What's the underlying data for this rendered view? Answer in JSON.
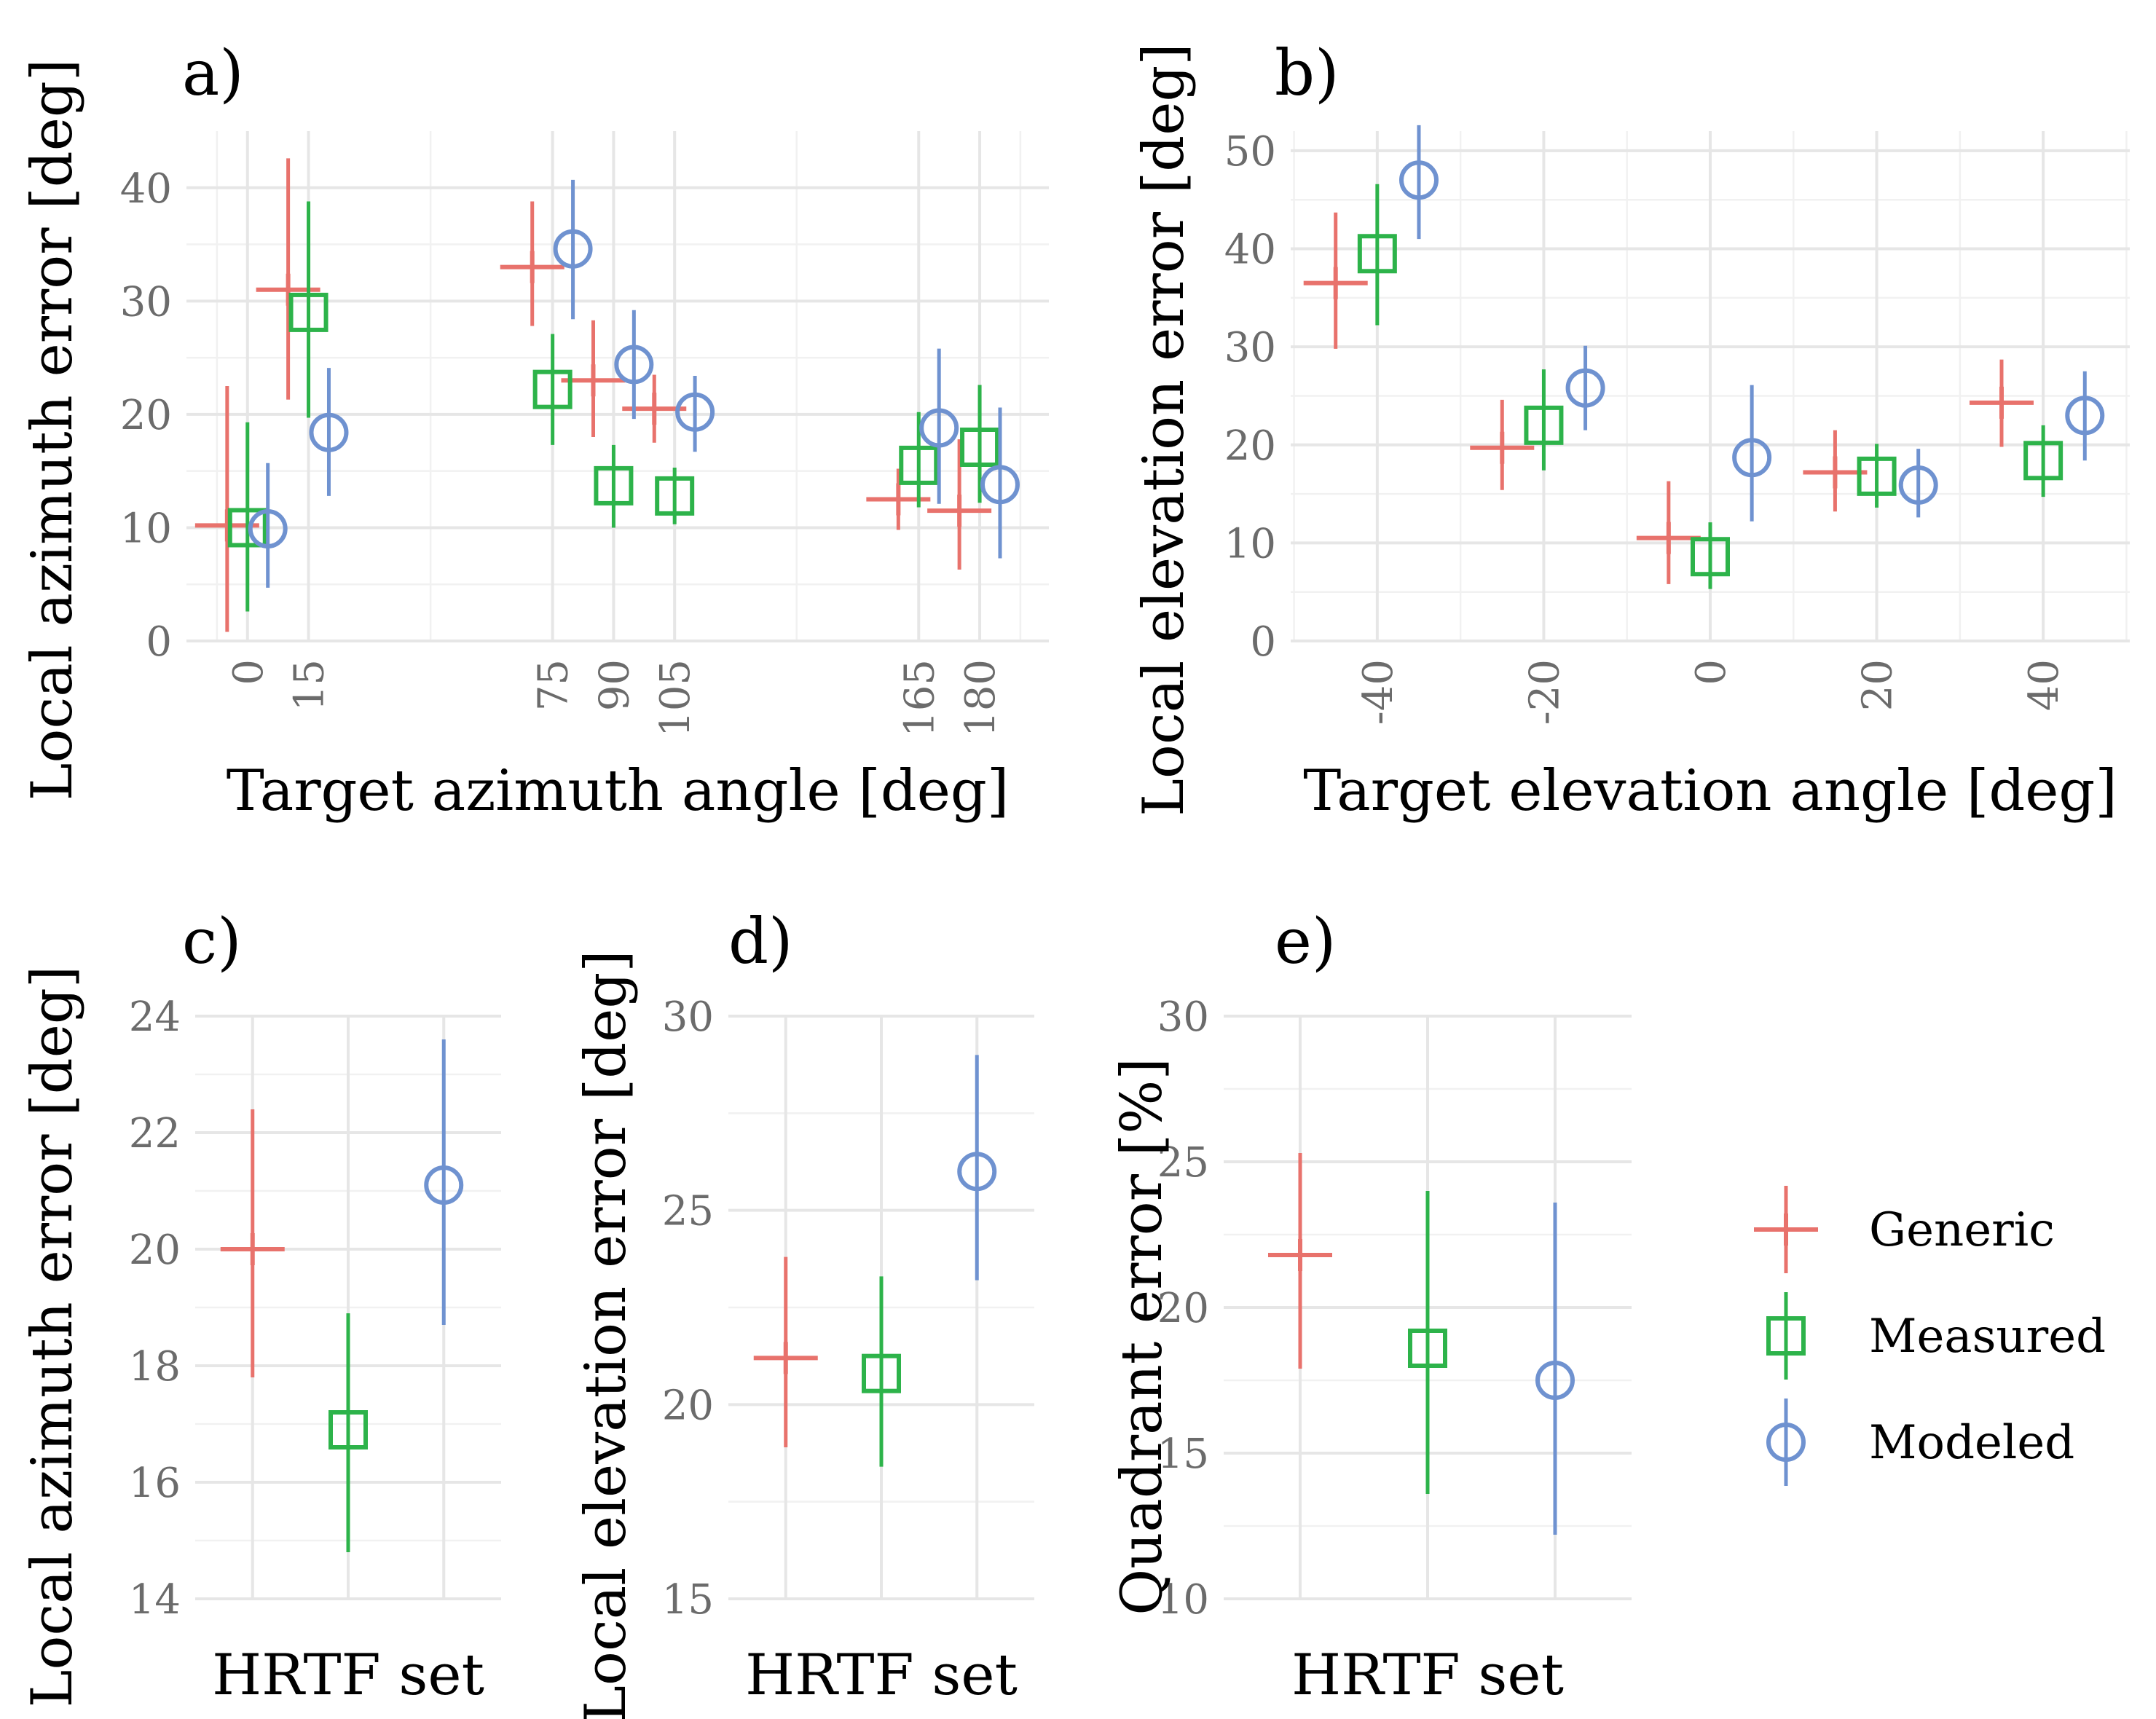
{
  "colors": {
    "Generic": "#e8726c",
    "Measured": "#2db34a",
    "Modeled": "#6f92d0",
    "grid": "#e6e6e6",
    "tick": "#6b6b6b"
  },
  "legend": {
    "items": [
      {
        "name": "Generic",
        "label": "Generic",
        "shape": "cross"
      },
      {
        "name": "Measured",
        "label": "Measured",
        "shape": "square"
      },
      {
        "name": "Modeled",
        "label": "Modeled",
        "shape": "circle"
      }
    ]
  },
  "chart_data": [
    {
      "id": "a",
      "panel_label": "a)",
      "type": "scatter",
      "xlabel": "Target azimuth angle [deg]",
      "ylabel": "Local azimuth error [deg]",
      "x_ticks": [
        0,
        15,
        75,
        90,
        105,
        165,
        180
      ],
      "x_tick_labels": [
        "0",
        "15",
        "75",
        "90",
        "105",
        "165",
        "180"
      ],
      "x_tick_rotation": -90,
      "y_ticks": [
        0,
        10,
        20,
        30,
        40
      ],
      "y_tick_labels": [
        "0",
        "10",
        "20",
        "30",
        "40"
      ],
      "xlim": [
        -15,
        197
      ],
      "ylim": [
        0,
        45
      ],
      "series": [
        {
          "name": "Generic",
          "points": [
            {
              "x": -5,
              "y": 10.2,
              "lo": 0.8,
              "hi": 22.5
            },
            {
              "x": 10,
              "y": 31.0,
              "lo": 21.3,
              "hi": 42.6
            },
            {
              "x": 70,
              "y": 33.0,
              "lo": 27.8,
              "hi": 38.8
            },
            {
              "x": 85,
              "y": 23.0,
              "lo": 18.0,
              "hi": 28.3
            },
            {
              "x": 100,
              "y": 20.5,
              "lo": 17.5,
              "hi": 23.5
            },
            {
              "x": 160,
              "y": 12.5,
              "lo": 9.8,
              "hi": 15.2
            },
            {
              "x": 175,
              "y": 11.5,
              "lo": 6.3,
              "hi": 17.8
            }
          ]
        },
        {
          "name": "Measured",
          "points": [
            {
              "x": 0,
              "y": 10.0,
              "lo": 2.6,
              "hi": 19.3
            },
            {
              "x": 15,
              "y": 29.0,
              "lo": 19.7,
              "hi": 38.8
            },
            {
              "x": 75,
              "y": 22.2,
              "lo": 17.3,
              "hi": 27.1
            },
            {
              "x": 90,
              "y": 13.7,
              "lo": 10.0,
              "hi": 17.3
            },
            {
              "x": 105,
              "y": 12.8,
              "lo": 10.3,
              "hi": 15.3
            },
            {
              "x": 165,
              "y": 15.5,
              "lo": 11.8,
              "hi": 20.2
            },
            {
              "x": 180,
              "y": 17.1,
              "lo": 12.2,
              "hi": 22.6
            }
          ]
        },
        {
          "name": "Modeled",
          "points": [
            {
              "x": 5,
              "y": 9.9,
              "lo": 4.7,
              "hi": 15.7
            },
            {
              "x": 20,
              "y": 18.4,
              "lo": 12.8,
              "hi": 24.1
            },
            {
              "x": 80,
              "y": 34.6,
              "lo": 28.4,
              "hi": 40.7
            },
            {
              "x": 95,
              "y": 24.4,
              "lo": 19.6,
              "hi": 29.2
            },
            {
              "x": 110,
              "y": 20.2,
              "lo": 16.7,
              "hi": 23.4
            },
            {
              "x": 170,
              "y": 18.8,
              "lo": 12.1,
              "hi": 25.8
            },
            {
              "x": 185,
              "y": 13.8,
              "lo": 7.3,
              "hi": 20.6
            }
          ]
        }
      ]
    },
    {
      "id": "b",
      "panel_label": "b)",
      "type": "scatter",
      "xlabel": "Target elevation angle [deg]",
      "ylabel": "Local elevation error [deg]",
      "x_ticks": [
        -40,
        -20,
        0,
        20,
        40
      ],
      "x_tick_labels": [
        "-40",
        "-20",
        "0",
        "20",
        "40"
      ],
      "x_tick_rotation": -90,
      "y_ticks": [
        0,
        10,
        20,
        30,
        40,
        50
      ],
      "y_tick_labels": [
        "0",
        "10",
        "20",
        "30",
        "40",
        "50"
      ],
      "xlim": [
        -50.4,
        50.4
      ],
      "ylim": [
        0,
        52
      ],
      "series": [
        {
          "name": "Generic",
          "points": [
            {
              "x": -45,
              "y": 36.5,
              "lo": 29.8,
              "hi": 43.7
            },
            {
              "x": -25,
              "y": 19.7,
              "lo": 15.4,
              "hi": 24.6
            },
            {
              "x": -5,
              "y": 10.5,
              "lo": 5.8,
              "hi": 16.3
            },
            {
              "x": 15,
              "y": 17.2,
              "lo": 13.2,
              "hi": 21.5
            },
            {
              "x": 35,
              "y": 24.3,
              "lo": 19.8,
              "hi": 28.7
            }
          ]
        },
        {
          "name": "Measured",
          "points": [
            {
              "x": -40,
              "y": 39.5,
              "lo": 32.2,
              "hi": 46.6
            },
            {
              "x": -20,
              "y": 22.0,
              "lo": 17.4,
              "hi": 27.7
            },
            {
              "x": 0,
              "y": 8.6,
              "lo": 5.3,
              "hi": 12.1
            },
            {
              "x": 20,
              "y": 16.8,
              "lo": 13.6,
              "hi": 20.1
            },
            {
              "x": 40,
              "y": 18.4,
              "lo": 14.7,
              "hi": 22.0
            }
          ]
        },
        {
          "name": "Modeled",
          "points": [
            {
              "x": -35,
              "y": 47.0,
              "lo": 41.0,
              "hi": 52.6
            },
            {
              "x": -15,
              "y": 25.8,
              "lo": 21.5,
              "hi": 30.1
            },
            {
              "x": 5,
              "y": 18.7,
              "lo": 12.2,
              "hi": 26.1
            },
            {
              "x": 25,
              "y": 15.9,
              "lo": 12.6,
              "hi": 19.6
            },
            {
              "x": 45,
              "y": 23.0,
              "lo": 18.4,
              "hi": 27.5
            }
          ]
        }
      ]
    },
    {
      "id": "c",
      "panel_label": "c)",
      "type": "scatter",
      "xlabel": "HRTF set",
      "ylabel": "Local azimuth error [deg]",
      "x_ticks": [
        1,
        2,
        3
      ],
      "x_tick_labels": [],
      "y_ticks": [
        14,
        16,
        18,
        20,
        22,
        24
      ],
      "y_tick_labels": [
        "14",
        "16",
        "18",
        "20",
        "22",
        "24"
      ],
      "xlim": [
        0.4,
        3.6
      ],
      "ylim": [
        14,
        24
      ],
      "series": [
        {
          "name": "Generic",
          "points": [
            {
              "x": 1,
              "y": 20.0,
              "lo": 17.8,
              "hi": 22.4
            }
          ]
        },
        {
          "name": "Measured",
          "points": [
            {
              "x": 2,
              "y": 16.9,
              "lo": 14.8,
              "hi": 18.9
            }
          ]
        },
        {
          "name": "Modeled",
          "points": [
            {
              "x": 3,
              "y": 21.1,
              "lo": 18.7,
              "hi": 23.6
            }
          ]
        }
      ]
    },
    {
      "id": "d",
      "panel_label": "d)",
      "type": "scatter",
      "xlabel": "HRTF set",
      "ylabel": "Local elevation error [deg]",
      "x_ticks": [
        1,
        2,
        3
      ],
      "x_tick_labels": [],
      "y_ticks": [
        15,
        20,
        25,
        30
      ],
      "y_tick_labels": [
        "15",
        "20",
        "25",
        "30"
      ],
      "xlim": [
        0.4,
        3.6
      ],
      "ylim": [
        15,
        30
      ],
      "series": [
        {
          "name": "Generic",
          "points": [
            {
              "x": 1,
              "y": 21.2,
              "lo": 18.9,
              "hi": 23.8
            }
          ]
        },
        {
          "name": "Measured",
          "points": [
            {
              "x": 2,
              "y": 20.8,
              "lo": 18.4,
              "hi": 23.3
            }
          ]
        },
        {
          "name": "Modeled",
          "points": [
            {
              "x": 3,
              "y": 26.0,
              "lo": 23.2,
              "hi": 29.0
            }
          ]
        }
      ]
    },
    {
      "id": "e",
      "panel_label": "e)",
      "type": "scatter",
      "xlabel": "HRTF set",
      "ylabel": "Quadrant error [%]",
      "x_ticks": [
        1,
        2,
        3
      ],
      "x_tick_labels": [],
      "y_ticks": [
        10,
        15,
        20,
        25,
        30
      ],
      "y_tick_labels": [
        "10",
        "15",
        "20",
        "25",
        "30"
      ],
      "xlim": [
        0.4,
        3.6
      ],
      "ylim": [
        10,
        30
      ],
      "series": [
        {
          "name": "Generic",
          "points": [
            {
              "x": 1,
              "y": 21.8,
              "lo": 17.9,
              "hi": 25.3
            }
          ]
        },
        {
          "name": "Measured",
          "points": [
            {
              "x": 2,
              "y": 18.6,
              "lo": 13.6,
              "hi": 24.0
            }
          ]
        },
        {
          "name": "Modeled",
          "points": [
            {
              "x": 3,
              "y": 17.5,
              "lo": 12.2,
              "hi": 23.6
            }
          ]
        }
      ]
    }
  ]
}
